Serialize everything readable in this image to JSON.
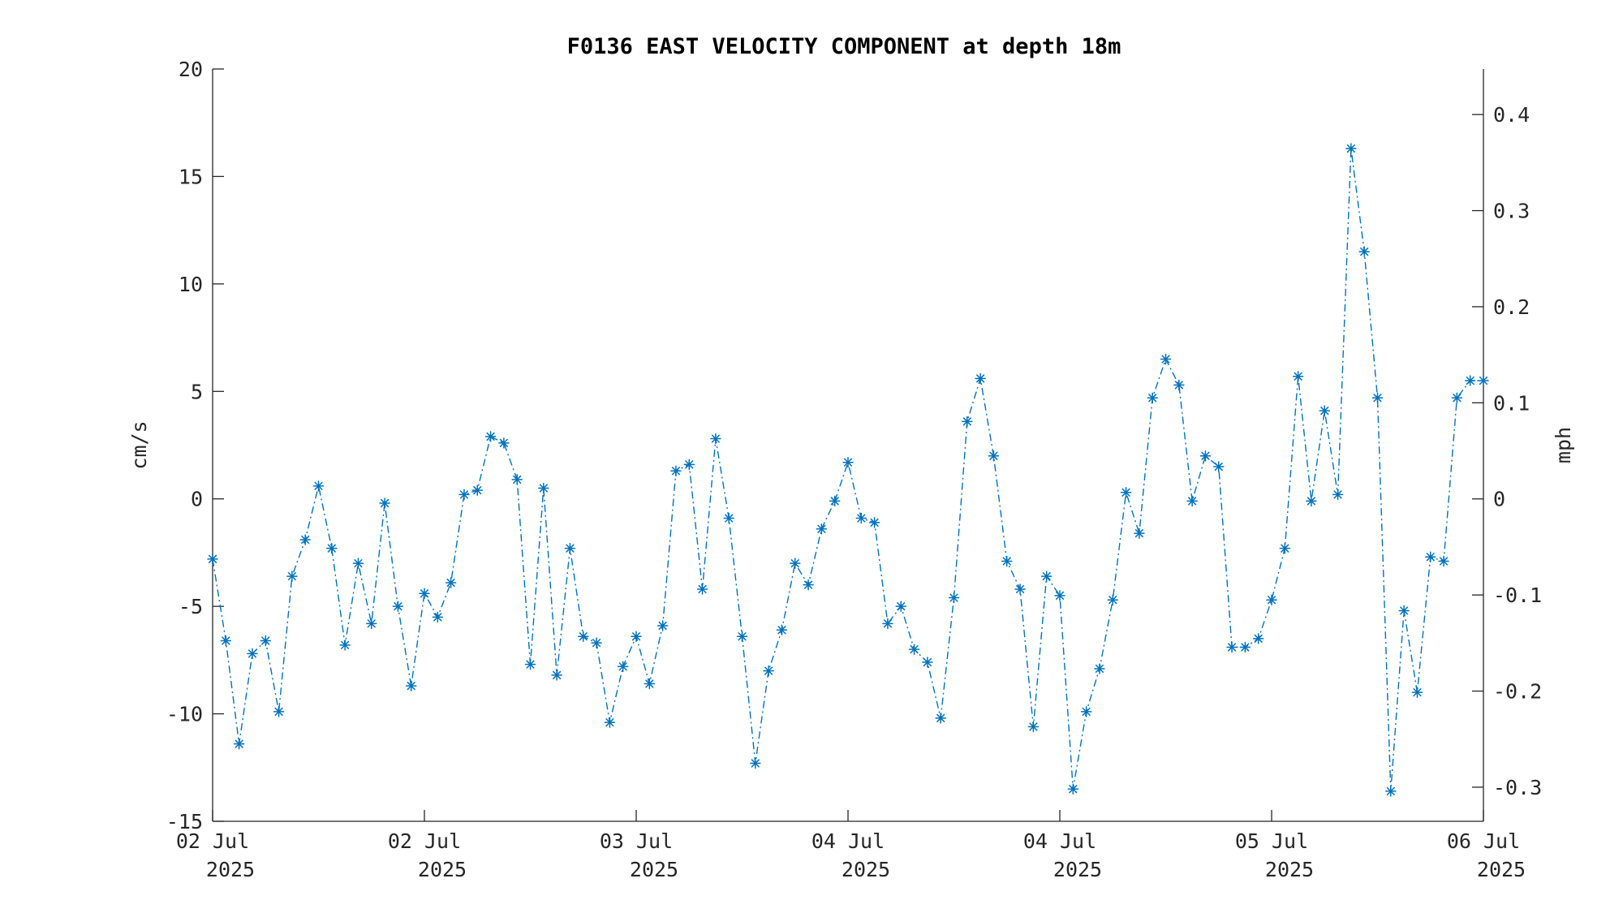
{
  "chart_data": {
    "type": "line",
    "title": "F0136 EAST VELOCITY COMPONENT at depth 18m",
    "ylabel": "cm/s",
    "ylabel_right": "mph",
    "ylim": [
      -15,
      20
    ],
    "yticks": [
      -15,
      -10,
      -5,
      0,
      5,
      10,
      15,
      20
    ],
    "ylim_right_mph": [
      -0.3355,
      0.4474
    ],
    "yticks_right": [
      -0.3,
      -0.2,
      -0.1,
      0,
      0.1,
      0.2,
      0.3,
      0.4
    ],
    "ytick_labels_right": [
      "-0.3",
      "-0.2",
      "-0.1",
      "0",
      "0.1",
      "0.2",
      "0.3",
      "0.4"
    ],
    "xlim": [
      "2025-07-02 00:00",
      "2025-07-06 00:00"
    ],
    "xticks": [
      {
        "time": "2025-07-02 00:00",
        "line1": "02 Jul",
        "line2": "2025"
      },
      {
        "time": "2025-07-02 16:00",
        "line1": "02 Jul",
        "line2": "2025"
      },
      {
        "time": "2025-07-03 08:00",
        "line1": "03 Jul",
        "line2": "2025"
      },
      {
        "time": "2025-07-04 00:00",
        "line1": "04 Jul",
        "line2": "2025"
      },
      {
        "time": "2025-07-04 16:00",
        "line1": "04 Jul",
        "line2": "2025"
      },
      {
        "time": "2025-07-05 08:00",
        "line1": "05 Jul",
        "line2": "2025"
      },
      {
        "time": "2025-07-06 00:00",
        "line1": "06 Jul",
        "line2": "2025"
      }
    ],
    "grid": false,
    "color": "#0072BD",
    "line_style": "dash-dot",
    "marker": "asterisk",
    "series": [
      {
        "times": [
          "2025-07-02 00:00",
          "2025-07-02 01:00",
          "2025-07-02 02:00",
          "2025-07-02 03:00",
          "2025-07-02 04:00",
          "2025-07-02 05:00",
          "2025-07-02 06:00",
          "2025-07-02 07:00",
          "2025-07-02 08:00",
          "2025-07-02 09:00",
          "2025-07-02 10:00",
          "2025-07-02 11:00",
          "2025-07-02 12:00",
          "2025-07-02 13:00",
          "2025-07-02 14:00",
          "2025-07-02 15:00",
          "2025-07-02 16:00",
          "2025-07-02 17:00",
          "2025-07-02 18:00",
          "2025-07-02 19:00",
          "2025-07-02 20:00",
          "2025-07-02 21:00",
          "2025-07-02 22:00",
          "2025-07-02 23:00",
          "2025-07-03 00:00",
          "2025-07-03 01:00",
          "2025-07-03 02:00",
          "2025-07-03 03:00",
          "2025-07-03 04:00",
          "2025-07-03 05:00",
          "2025-07-03 06:00",
          "2025-07-03 07:00",
          "2025-07-03 08:00",
          "2025-07-03 09:00",
          "2025-07-03 10:00",
          "2025-07-03 11:00",
          "2025-07-03 12:00",
          "2025-07-03 13:00",
          "2025-07-03 14:00",
          "2025-07-03 15:00",
          "2025-07-03 16:00",
          "2025-07-03 17:00",
          "2025-07-03 18:00",
          "2025-07-03 19:00",
          "2025-07-03 20:00",
          "2025-07-03 21:00",
          "2025-07-03 22:00",
          "2025-07-03 23:00",
          "2025-07-04 00:00",
          "2025-07-04 01:00",
          "2025-07-04 02:00",
          "2025-07-04 03:00",
          "2025-07-04 04:00",
          "2025-07-04 05:00",
          "2025-07-04 06:00",
          "2025-07-04 07:00",
          "2025-07-04 08:00",
          "2025-07-04 09:00",
          "2025-07-04 10:00",
          "2025-07-04 11:00",
          "2025-07-04 12:00",
          "2025-07-04 13:00",
          "2025-07-04 14:00",
          "2025-07-04 15:00",
          "2025-07-04 16:00",
          "2025-07-04 17:00",
          "2025-07-04 18:00",
          "2025-07-04 19:00",
          "2025-07-04 20:00",
          "2025-07-04 21:00",
          "2025-07-04 22:00",
          "2025-07-04 23:00",
          "2025-07-05 00:00",
          "2025-07-05 01:00",
          "2025-07-05 02:00",
          "2025-07-05 03:00",
          "2025-07-05 04:00",
          "2025-07-05 05:00",
          "2025-07-05 06:00",
          "2025-07-05 07:00",
          "2025-07-05 08:00",
          "2025-07-05 09:00",
          "2025-07-05 10:00",
          "2025-07-05 11:00",
          "2025-07-05 12:00",
          "2025-07-05 13:00",
          "2025-07-05 14:00",
          "2025-07-05 15:00",
          "2025-07-05 16:00",
          "2025-07-05 17:00",
          "2025-07-05 18:00",
          "2025-07-05 19:00",
          "2025-07-05 20:00",
          "2025-07-05 21:00",
          "2025-07-05 22:00",
          "2025-07-05 23:00",
          "2025-07-06 00:00"
        ],
        "values": [
          -2.8,
          -6.6,
          -11.4,
          -7.2,
          -6.6,
          -9.9,
          -3.6,
          -1.9,
          0.6,
          -2.3,
          -6.8,
          -3.0,
          -5.8,
          -0.2,
          -5.0,
          -8.7,
          -4.4,
          -5.5,
          -3.9,
          0.2,
          0.4,
          2.9,
          2.6,
          0.9,
          -7.7,
          0.5,
          -8.2,
          -2.3,
          -6.4,
          -6.7,
          -10.4,
          -7.8,
          -6.4,
          -8.6,
          -5.9,
          1.3,
          1.6,
          -4.2,
          2.8,
          -0.9,
          -6.4,
          -12.3,
          -8.0,
          -6.1,
          -3.0,
          -4.0,
          -1.4,
          -0.1,
          1.7,
          -0.9,
          -1.1,
          -5.8,
          -5.0,
          -7.0,
          -7.6,
          -10.2,
          -4.6,
          3.6,
          5.6,
          2.0,
          -2.9,
          -4.2,
          -10.6,
          -3.6,
          -4.5,
          -13.5,
          -9.9,
          -7.9,
          -4.7,
          0.3,
          -1.6,
          4.7,
          6.5,
          5.3,
          -0.1,
          2.0,
          1.5,
          -6.9,
          -6.9,
          -6.5,
          -4.7,
          -2.3,
          5.7,
          -0.1,
          4.1,
          0.2,
          16.3,
          11.5,
          4.7,
          -13.6,
          -5.2,
          -9.0,
          -2.7,
          -2.9,
          4.7,
          5.5,
          5.5
        ]
      }
    ]
  }
}
